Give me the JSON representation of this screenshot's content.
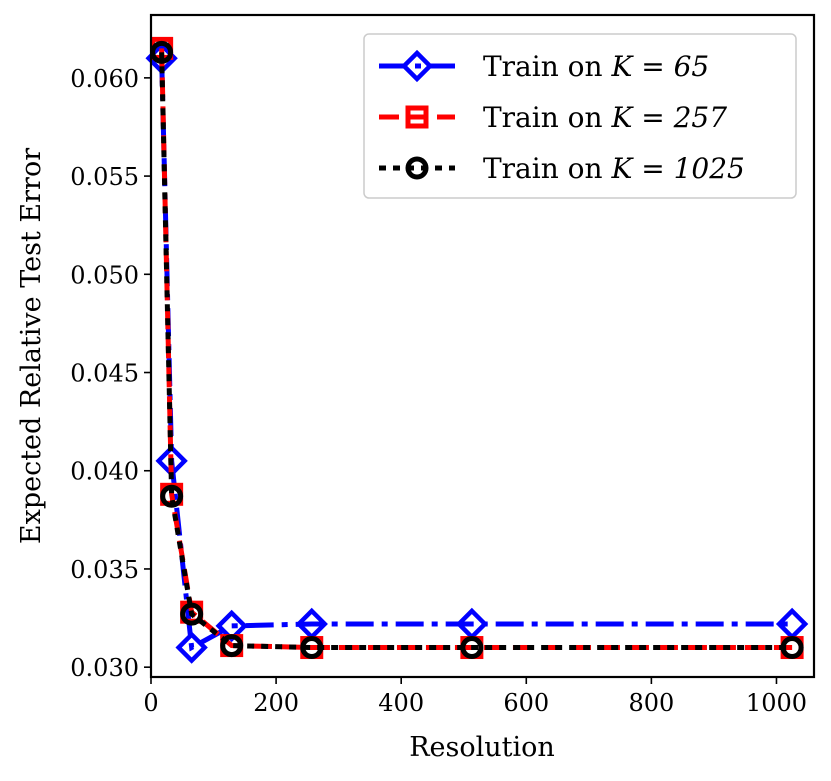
{
  "chart_data": {
    "type": "line",
    "title": "",
    "xlabel": "Resolution",
    "ylabel": "Expected Relative Test Error",
    "xlim": [
      0,
      1060
    ],
    "ylim": [
      0.0295,
      0.0632
    ],
    "xticks": [
      0,
      200,
      400,
      600,
      800,
      1000
    ],
    "xtick_labels": [
      "0",
      "200",
      "400",
      "600",
      "800",
      "1000"
    ],
    "yticks": [
      0.03,
      0.035,
      0.04,
      0.045,
      0.05,
      0.055,
      0.06
    ],
    "ytick_labels": [
      "0.030",
      "0.035",
      "0.040",
      "0.045",
      "0.050",
      "0.055",
      "0.060"
    ],
    "grid": false,
    "legend_position": "top-right",
    "x": [
      17,
      33,
      65,
      129,
      257,
      513,
      1025
    ],
    "series": [
      {
        "name": "Train on K = 65",
        "legend_prefix": "Train on ",
        "legend_math": "K = 65",
        "color": "#0000ff",
        "marker": "diamond",
        "linestyle": "dashdot",
        "values": [
          0.061,
          0.0405,
          0.031,
          0.0321,
          0.0322,
          0.0322,
          0.0322
        ]
      },
      {
        "name": "Train on K = 257",
        "legend_prefix": "Train on ",
        "legend_math": "K = 257",
        "color": "#ff0000",
        "marker": "square",
        "linestyle": "dashed",
        "values": [
          0.0615,
          0.0388,
          0.0328,
          0.0311,
          0.031,
          0.031,
          0.031
        ]
      },
      {
        "name": "Train on K = 1025",
        "legend_prefix": "Train on ",
        "legend_math": "K = 1025",
        "color": "#000000",
        "marker": "circle",
        "linestyle": "dotted",
        "values": [
          0.0613,
          0.0387,
          0.0327,
          0.0311,
          0.031,
          0.031,
          0.031
        ]
      }
    ]
  }
}
